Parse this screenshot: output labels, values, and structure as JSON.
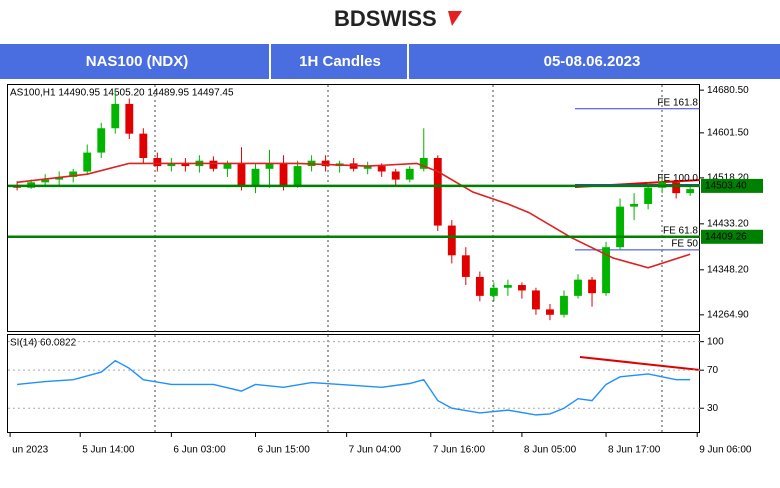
{
  "header": {
    "logo": "BDSWISS",
    "instrument": "NAS100 (NDX)",
    "timeframe": "1H Candles",
    "dates": "05-08.06.2023"
  },
  "chart_data": [
    {
      "type": "candlestick",
      "info": "AS100,H1  14490.95 14505.20 14489.95 14497.45",
      "x": [
        5,
        7,
        9,
        11,
        13,
        15,
        17,
        19,
        21,
        23,
        25,
        27,
        29,
        31,
        33,
        35,
        37,
        39,
        41,
        43,
        45,
        47,
        49,
        51,
        53,
        55,
        57,
        59,
        61,
        63,
        65,
        67,
        69,
        71,
        73,
        75,
        77,
        79,
        81,
        83,
        85,
        87,
        89,
        91,
        93,
        95,
        97,
        99,
        101
      ],
      "open": [
        14505,
        14500,
        14510,
        14515,
        14520,
        14530,
        14565,
        14610,
        14655,
        14600,
        14555,
        14540,
        14545,
        14540,
        14550,
        14535,
        14545,
        14505,
        14535,
        14545,
        14505,
        14540,
        14550,
        14540,
        14545,
        14535,
        14540,
        14530,
        14515,
        14535,
        14555,
        14430,
        14375,
        14335,
        14300,
        14315,
        14320,
        14310,
        14275,
        14265,
        14300,
        14330,
        14305,
        14390,
        14465,
        14470,
        14500,
        14510,
        14490
      ],
      "high": [
        14512,
        14515,
        14525,
        14530,
        14535,
        14580,
        14620,
        14680,
        14665,
        14610,
        14565,
        14555,
        14555,
        14560,
        14558,
        14550,
        14575,
        14545,
        14570,
        14560,
        14550,
        14560,
        14560,
        14550,
        14555,
        14548,
        14545,
        14535,
        14540,
        14610,
        14560,
        14440,
        14390,
        14345,
        14325,
        14330,
        14325,
        14315,
        14285,
        14310,
        14340,
        14335,
        14400,
        14480,
        14490,
        14510,
        14520,
        14515,
        14505
      ],
      "low": [
        14495,
        14498,
        14505,
        14505,
        14510,
        14525,
        14555,
        14600,
        14590,
        14545,
        14530,
        14530,
        14530,
        14528,
        14530,
        14520,
        14495,
        14490,
        14500,
        14495,
        14500,
        14530,
        14530,
        14528,
        14530,
        14525,
        14520,
        14505,
        14510,
        14530,
        14420,
        14360,
        14320,
        14290,
        14290,
        14300,
        14295,
        14265,
        14255,
        14260,
        14295,
        14280,
        14300,
        14385,
        14440,
        14460,
        14490,
        14480,
        14485
      ],
      "close": [
        14500,
        14510,
        14515,
        14520,
        14530,
        14565,
        14610,
        14655,
        14600,
        14555,
        14540,
        14545,
        14540,
        14550,
        14535,
        14545,
        14505,
        14535,
        14545,
        14505,
        14540,
        14550,
        14540,
        14545,
        14535,
        14540,
        14530,
        14515,
        14535,
        14555,
        14430,
        14375,
        14335,
        14300,
        14315,
        14320,
        14310,
        14275,
        14265,
        14300,
        14330,
        14305,
        14390,
        14465,
        14470,
        14500,
        14510,
        14490,
        14497.45
      ],
      "up_color": "#00b400",
      "down_color": "#e00000",
      "moving_average": {
        "color": "#e02020",
        "x": [
          5,
          15,
          21,
          30,
          45,
          55,
          62,
          65,
          70,
          75,
          78,
          84,
          90,
          95,
          101
        ],
        "values": [
          14510,
          14525,
          14545,
          14545,
          14545,
          14540,
          14545,
          14530,
          14492,
          14470,
          14454,
          14408,
          14370,
          14352,
          14377
        ]
      },
      "levels": [
        {
          "value": 14503.4,
          "label": "14503.40"
        },
        {
          "value": 14409.26,
          "label": "14409.26"
        }
      ],
      "level_color": "#008000",
      "fibo": [
        {
          "value": 14646,
          "label": "FE 161.8"
        },
        {
          "value": 14506,
          "label": "FE 100.0"
        },
        {
          "value": 14409,
          "label": "FE 61.8"
        },
        {
          "value": 14385,
          "label": "FE 50"
        }
      ],
      "fibo_color": "#3040e0",
      "xlim": [
        3.7,
        102.4
      ],
      "xticks": [
        {
          "value": 4,
          "label": "un 2023"
        },
        {
          "value": 14,
          "label": "5 Jun 14:00"
        },
        {
          "value": 27,
          "label": "6 Jun 03:00"
        },
        {
          "value": 39,
          "label": "6 Jun 15:00"
        },
        {
          "value": 52,
          "label": "7 Jun 04:00"
        },
        {
          "value": 64,
          "label": "7 Jun 16:00"
        },
        {
          "value": 77,
          "label": "8 Jun 05:00"
        },
        {
          "value": 89,
          "label": "8 Jun 17:00"
        },
        {
          "value": 102,
          "label": "9 Jun 06:00"
        }
      ],
      "ylim": [
        14235,
        14690
      ],
      "yticks": [
        {
          "value": 14680.5,
          "label": "14680.50"
        },
        {
          "value": 14601.5,
          "label": "14601.50"
        },
        {
          "value": 14518.2,
          "label": "14518.20"
        },
        {
          "value": 14433.2,
          "label": "14433.20"
        },
        {
          "value": 14348.2,
          "label": "14348.20"
        },
        {
          "value": 14264.9,
          "label": "14264.90"
        }
      ]
    },
    {
      "type": "line",
      "label": "SI(14) 60.0822",
      "color": "#1e90ff",
      "x": [
        5,
        9,
        13,
        17,
        19,
        21,
        23,
        27,
        33,
        37,
        39,
        43,
        47,
        51,
        57,
        61,
        63,
        65,
        67,
        71,
        75,
        79,
        81,
        83,
        85,
        87,
        89,
        91,
        95,
        97,
        99,
        101
      ],
      "values": [
        55,
        58,
        60,
        68,
        80,
        72,
        60,
        55,
        55,
        48,
        55,
        52,
        57,
        55,
        52,
        56,
        60,
        38,
        30,
        25,
        28,
        23,
        24,
        30,
        40,
        38,
        55,
        63,
        66,
        63,
        60,
        60.0822
      ],
      "ylim": [
        5,
        107
      ],
      "yticks": [
        100,
        70,
        30
      ]
    }
  ]
}
